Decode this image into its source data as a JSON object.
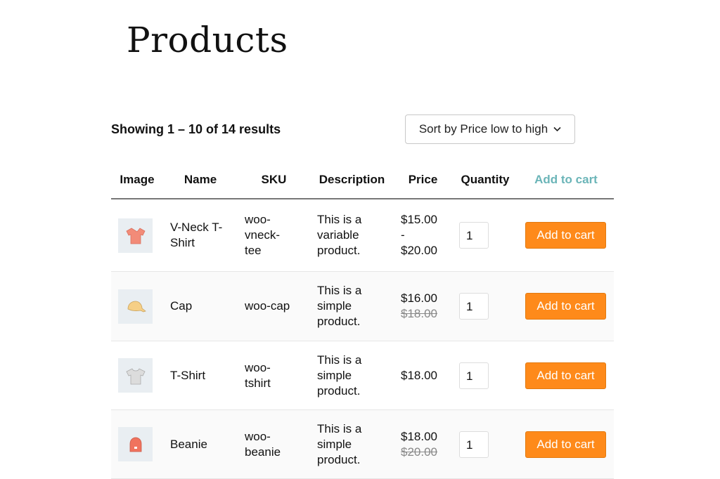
{
  "page": {
    "title": "Products",
    "result_count": "Showing 1 – 10 of 14 results",
    "sort_label": "Sort by Price low to high"
  },
  "colors": {
    "accent": "#fe8a1a",
    "header_link": "#6bb5b8"
  },
  "table": {
    "headers": [
      "Image",
      "Name",
      "SKU",
      "Description",
      "Price",
      "Quantity",
      "Add to cart"
    ],
    "rows": [
      {
        "image": "v-neck-tshirt-icon",
        "name": [
          "V-Neck T-",
          "Shirt"
        ],
        "sku": [
          "woo-",
          "vneck-",
          "tee"
        ],
        "desc": [
          "This is a",
          "variable",
          "product."
        ],
        "price": [
          "$15.00",
          "-",
          "$20.00"
        ],
        "old_price": null,
        "qty": "1",
        "button": "Add to cart"
      },
      {
        "image": "cap-icon",
        "name": [
          "Cap"
        ],
        "sku": [
          "woo-cap"
        ],
        "desc": [
          "This is a",
          "simple",
          "product."
        ],
        "price": [
          "$16.00"
        ],
        "old_price": "$18.00",
        "qty": "1",
        "button": "Add to cart"
      },
      {
        "image": "tshirt-icon",
        "name": [
          "T-Shirt"
        ],
        "sku": [
          "woo-",
          "tshirt"
        ],
        "desc": [
          "This is a",
          "simple",
          "product."
        ],
        "price": [
          "$18.00"
        ],
        "old_price": null,
        "qty": "1",
        "button": "Add to cart"
      },
      {
        "image": "beanie-icon",
        "name": [
          "Beanie"
        ],
        "sku": [
          "woo-",
          "beanie"
        ],
        "desc": [
          "This is a",
          "simple",
          "product."
        ],
        "price": [
          "$18.00"
        ],
        "old_price": "$20.00",
        "qty": "1",
        "button": "Add to cart"
      }
    ]
  }
}
